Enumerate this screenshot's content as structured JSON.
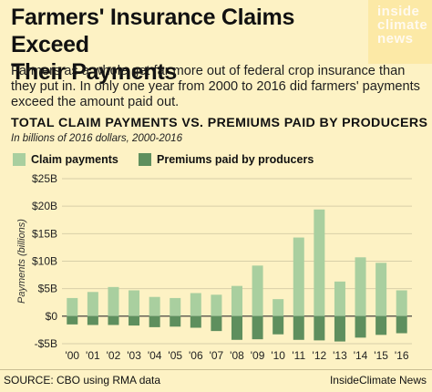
{
  "header": {
    "headline_line1": "Farmers' Insurance Claims Exceed",
    "headline_line2": "Their Payments",
    "logo_line1": "inside",
    "logo_line2": "climate",
    "logo_line3": "news",
    "intro": "Farmers as a whole get far more out of federal crop insurance than they put in. In only one year from 2000 to 2016 did farmers' payments exceed the amount paid out."
  },
  "chart_data": {
    "type": "bar",
    "title": "TOTAL CLAIM PAYMENTS VS. PREMIUMS PAID BY PRODUCERS",
    "subtitle": "In billions of 2016 dollars, 2000-2016",
    "ylabel": "Payments (billions)",
    "xlabel": "",
    "categories": [
      "'00",
      "'01",
      "'02",
      "'03",
      "'04",
      "'05",
      "'06",
      "'07",
      "'08",
      "'09",
      "'10",
      "'11",
      "'12",
      "'13",
      "'14",
      "'15",
      "'16"
    ],
    "series": [
      {
        "name": "Claim payments",
        "color": "#a9cf9f",
        "values": [
          3.3,
          4.4,
          5.3,
          4.7,
          3.5,
          3.3,
          4.2,
          3.9,
          5.5,
          9.2,
          3.1,
          14.3,
          19.4,
          6.3,
          10.7,
          9.7,
          4.7
        ]
      },
      {
        "name": "Premiums paid by producers",
        "color": "#5e8f5e",
        "values": [
          -1.5,
          -1.6,
          -1.6,
          -1.7,
          -2.0,
          -1.9,
          -2.1,
          -2.7,
          -4.3,
          -4.2,
          -3.3,
          -4.3,
          -4.4,
          -4.6,
          -3.9,
          -3.4,
          -3.1
        ]
      }
    ],
    "ylim": [
      -5,
      25
    ],
    "yticks": [
      -5,
      0,
      5,
      10,
      15,
      20,
      25
    ],
    "ytick_labels": [
      "-$5B",
      "$0",
      "$5B",
      "$10B",
      "$15B",
      "$20B",
      "$25B"
    ],
    "grid": true
  },
  "footer": {
    "source": "SOURCE: CBO using RMA data",
    "credit": "InsideClimate News"
  }
}
